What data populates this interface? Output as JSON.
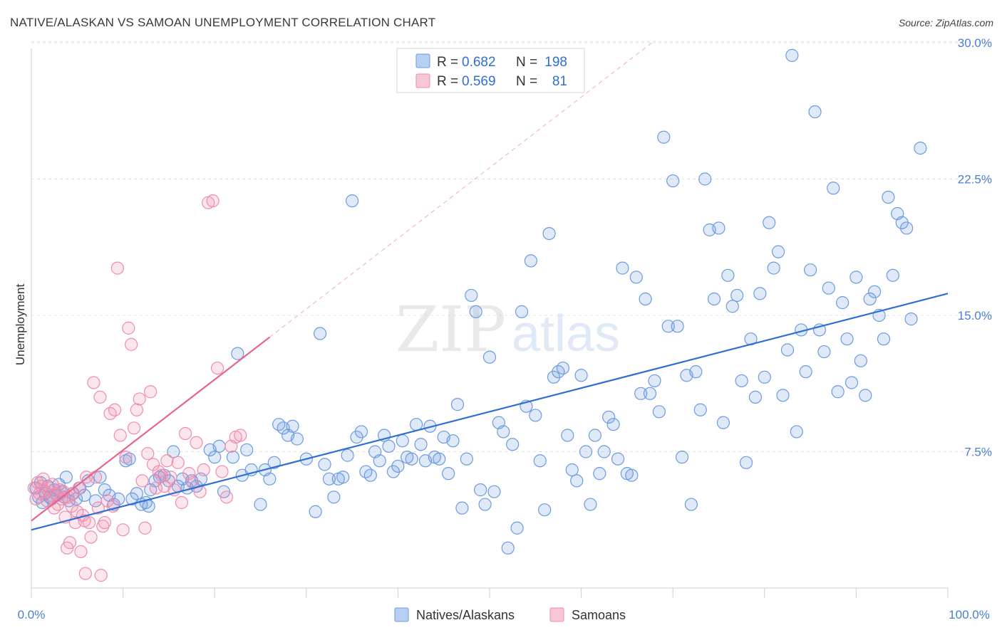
{
  "title": "NATIVE/ALASKAN VS SAMOAN UNEMPLOYMENT CORRELATION CHART",
  "source": "Source: ZipAtlas.com",
  "watermark": {
    "zip": "ZIP",
    "atlas": "atlas"
  },
  "colors": {
    "natives": "#6c9be0",
    "natives_line": "#2f6fd0",
    "samoans": "#f08cad",
    "samoans_line": "#e8648f",
    "tick_text": "#4a7fd0"
  },
  "chart_data": {
    "type": "scatter",
    "title": "NATIVE/ALASKAN VS SAMOAN UNEMPLOYMENT CORRELATION CHART",
    "xlabel": "",
    "ylabel": "Unemployment",
    "xlim": [
      0,
      100
    ],
    "ylim": [
      0,
      30
    ],
    "x_tick_labels": [
      "0.0%",
      "100.0%"
    ],
    "y_ticks": [
      7.5,
      15.0,
      22.5,
      30.0
    ],
    "y_tick_labels": [
      "7.5%",
      "15.0%",
      "22.5%",
      "30.0%"
    ],
    "grid": true,
    "legend": {
      "placement": "top-center",
      "entries": [
        {
          "r_label": "R = ",
          "r_value": "0.682",
          "n_label": "N = ",
          "n_value": "198"
        },
        {
          "r_label": "R = ",
          "r_value": "0.569",
          "n_label": "N = ",
          "n_value": "81"
        }
      ]
    },
    "series": [
      {
        "name": "Natives/Alaskans",
        "trend": {
          "x": [
            0,
            100
          ],
          "y": [
            3.2,
            16.2
          ]
        },
        "points": [
          [
            0.5,
            5.5
          ],
          [
            0.8,
            5.0
          ],
          [
            1.0,
            5.8
          ],
          [
            1.2,
            4.7
          ],
          [
            1.5,
            5.2
          ],
          [
            1.8,
            5.6
          ],
          [
            2.0,
            5.0
          ],
          [
            2.2,
            4.9
          ],
          [
            2.5,
            5.4
          ],
          [
            2.8,
            5.1
          ],
          [
            3.0,
            5.7
          ],
          [
            3.3,
            5.3
          ],
          [
            3.6,
            5.0
          ],
          [
            3.8,
            6.1
          ],
          [
            4.1,
            4.8
          ],
          [
            4.5,
            5.2
          ],
          [
            4.9,
            4.9
          ],
          [
            5.3,
            5.5
          ],
          [
            5.8,
            5.1
          ],
          [
            6.2,
            5.9
          ],
          [
            7.0,
            4.8
          ],
          [
            7.5,
            6.1
          ],
          [
            8.0,
            5.4
          ],
          [
            8.5,
            5.1
          ],
          [
            9.0,
            4.6
          ],
          [
            9.5,
            4.9
          ],
          [
            10.3,
            7.0
          ],
          [
            10.7,
            7.1
          ],
          [
            11.0,
            4.9
          ],
          [
            11.5,
            5.2
          ],
          [
            12.0,
            4.6
          ],
          [
            12.5,
            4.7
          ],
          [
            12.8,
            4.5
          ],
          [
            13.0,
            5.4
          ],
          [
            13.5,
            5.9
          ],
          [
            14.0,
            6.1
          ],
          [
            14.5,
            6.2
          ],
          [
            15.0,
            5.9
          ],
          [
            15.5,
            7.5
          ],
          [
            16.0,
            5.6
          ],
          [
            16.5,
            6.0
          ],
          [
            17.0,
            5.5
          ],
          [
            17.5,
            5.9
          ],
          [
            18.0,
            5.6
          ],
          [
            18.5,
            6.0
          ],
          [
            19.5,
            7.6
          ],
          [
            20.0,
            7.2
          ],
          [
            20.5,
            7.8
          ],
          [
            21.0,
            5.3
          ],
          [
            22.0,
            7.2
          ],
          [
            22.5,
            12.9
          ],
          [
            23.0,
            6.2
          ],
          [
            23.5,
            7.6
          ],
          [
            24.0,
            6.5
          ],
          [
            25.0,
            4.6
          ],
          [
            25.5,
            6.5
          ],
          [
            26.0,
            6.0
          ],
          [
            26.5,
            6.9
          ],
          [
            27.0,
            9.0
          ],
          [
            27.5,
            8.8
          ],
          [
            28.0,
            8.4
          ],
          [
            28.5,
            8.9
          ],
          [
            29.0,
            8.2
          ],
          [
            30.0,
            7.1
          ],
          [
            31.0,
            4.2
          ],
          [
            31.5,
            14.0
          ],
          [
            32.0,
            6.8
          ],
          [
            32.5,
            6.0
          ],
          [
            33.0,
            5.0
          ],
          [
            33.5,
            6.0
          ],
          [
            34.0,
            6.1
          ],
          [
            34.5,
            7.3
          ],
          [
            35.0,
            21.3
          ],
          [
            35.5,
            8.3
          ],
          [
            36.0,
            8.6
          ],
          [
            36.5,
            6.4
          ],
          [
            37.0,
            6.2
          ],
          [
            37.5,
            7.5
          ],
          [
            38.0,
            7.0
          ],
          [
            38.5,
            8.4
          ],
          [
            39.0,
            7.8
          ],
          [
            39.5,
            6.4
          ],
          [
            40.0,
            6.7
          ],
          [
            40.5,
            8.1
          ],
          [
            41.0,
            7.2
          ],
          [
            41.5,
            7.1
          ],
          [
            42.0,
            9.0
          ],
          [
            42.5,
            7.9
          ],
          [
            43.0,
            7.0
          ],
          [
            43.5,
            8.9
          ],
          [
            44.0,
            7.2
          ],
          [
            44.5,
            7.1
          ],
          [
            45.0,
            8.3
          ],
          [
            45.5,
            6.3
          ],
          [
            46.0,
            8.1
          ],
          [
            46.5,
            10.1
          ],
          [
            47.0,
            4.4
          ],
          [
            47.5,
            7.1
          ],
          [
            48.0,
            16.1
          ],
          [
            48.5,
            15.2
          ],
          [
            49.0,
            5.4
          ],
          [
            49.5,
            4.6
          ],
          [
            50.0,
            12.7
          ],
          [
            50.5,
            5.3
          ],
          [
            51.0,
            9.1
          ],
          [
            51.5,
            8.6
          ],
          [
            52.0,
            2.2
          ],
          [
            52.5,
            7.9
          ],
          [
            53.0,
            3.3
          ],
          [
            53.5,
            15.2
          ],
          [
            54.0,
            10.0
          ],
          [
            54.5,
            18.0
          ],
          [
            55.0,
            9.5
          ],
          [
            55.5,
            7.0
          ],
          [
            56.0,
            4.3
          ],
          [
            56.5,
            19.5
          ],
          [
            57.0,
            11.6
          ],
          [
            57.5,
            11.9
          ],
          [
            58.0,
            12.1
          ],
          [
            58.5,
            8.4
          ],
          [
            59.0,
            6.5
          ],
          [
            59.5,
            5.9
          ],
          [
            60.0,
            11.7
          ],
          [
            60.5,
            7.5
          ],
          [
            61.0,
            4.6
          ],
          [
            61.5,
            8.4
          ],
          [
            62.0,
            6.3
          ],
          [
            62.5,
            7.5
          ],
          [
            63.0,
            9.4
          ],
          [
            63.5,
            9.0
          ],
          [
            64.0,
            7.1
          ],
          [
            64.5,
            17.6
          ],
          [
            65.0,
            6.3
          ],
          [
            65.5,
            6.2
          ],
          [
            66.0,
            17.1
          ],
          [
            66.5,
            10.7
          ],
          [
            67.0,
            15.9
          ],
          [
            67.5,
            10.7
          ],
          [
            68.0,
            11.4
          ],
          [
            68.5,
            9.7
          ],
          [
            69.0,
            24.8
          ],
          [
            69.5,
            14.4
          ],
          [
            70.0,
            22.4
          ],
          [
            70.5,
            14.4
          ],
          [
            71.0,
            7.2
          ],
          [
            71.5,
            11.7
          ],
          [
            72.0,
            4.6
          ],
          [
            72.5,
            11.9
          ],
          [
            73.0,
            9.8
          ],
          [
            73.5,
            22.5
          ],
          [
            74.0,
            19.7
          ],
          [
            74.5,
            15.9
          ],
          [
            75.0,
            19.8
          ],
          [
            75.5,
            9.1
          ],
          [
            76.0,
            17.2
          ],
          [
            76.5,
            15.5
          ],
          [
            77.0,
            16.1
          ],
          [
            77.5,
            11.4
          ],
          [
            78.0,
            6.9
          ],
          [
            78.5,
            13.7
          ],
          [
            79.0,
            10.5
          ],
          [
            79.5,
            16.2
          ],
          [
            80.0,
            11.6
          ],
          [
            80.5,
            20.1
          ],
          [
            81.0,
            17.6
          ],
          [
            81.5,
            18.5
          ],
          [
            82.0,
            10.6
          ],
          [
            82.5,
            13.1
          ],
          [
            83.0,
            29.3
          ],
          [
            83.5,
            8.6
          ],
          [
            84.0,
            14.2
          ],
          [
            84.5,
            11.9
          ],
          [
            85.0,
            17.5
          ],
          [
            85.5,
            26.2
          ],
          [
            86.0,
            14.2
          ],
          [
            86.5,
            13.0
          ],
          [
            87.0,
            16.5
          ],
          [
            87.5,
            22.0
          ],
          [
            88.0,
            10.8
          ],
          [
            88.5,
            15.7
          ],
          [
            89.0,
            13.7
          ],
          [
            89.5,
            11.3
          ],
          [
            90.0,
            17.1
          ],
          [
            90.5,
            12.5
          ],
          [
            91.0,
            10.6
          ],
          [
            91.5,
            15.9
          ],
          [
            92.0,
            16.3
          ],
          [
            92.5,
            15.0
          ],
          [
            93.0,
            13.7
          ],
          [
            93.5,
            21.5
          ],
          [
            94.0,
            17.2
          ],
          [
            94.5,
            20.6
          ],
          [
            95.0,
            20.1
          ],
          [
            95.5,
            19.8
          ],
          [
            96.0,
            14.8
          ],
          [
            97.0,
            24.2
          ]
        ]
      },
      {
        "name": "Samoans",
        "trend": {
          "x": [
            0,
            26
          ],
          "y": [
            3.7,
            13.8
          ]
        },
        "points": [
          [
            0.3,
            5.5
          ],
          [
            0.5,
            4.9
          ],
          [
            0.7,
            5.8
          ],
          [
            0.9,
            5.2
          ],
          [
            1.1,
            5.6
          ],
          [
            1.3,
            6.0
          ],
          [
            1.5,
            5.3
          ],
          [
            1.7,
            4.8
          ],
          [
            1.9,
            5.5
          ],
          [
            2.1,
            5.1
          ],
          [
            2.3,
            5.7
          ],
          [
            2.5,
            4.4
          ],
          [
            2.7,
            5.2
          ],
          [
            2.9,
            4.6
          ],
          [
            3.1,
            5.4
          ],
          [
            3.3,
            4.9
          ],
          [
            3.5,
            5.3
          ],
          [
            3.7,
            3.9
          ],
          [
            4.0,
            5.0
          ],
          [
            4.2,
            2.5
          ],
          [
            4.4,
            4.5
          ],
          [
            4.6,
            5.2
          ],
          [
            4.8,
            3.6
          ],
          [
            5.0,
            4.2
          ],
          [
            5.2,
            5.5
          ],
          [
            5.4,
            2.0
          ],
          [
            5.6,
            4.0
          ],
          [
            5.8,
            3.7
          ],
          [
            6.0,
            6.1
          ],
          [
            6.3,
            3.6
          ],
          [
            6.5,
            2.8
          ],
          [
            6.8,
            11.3
          ],
          [
            7.0,
            6.1
          ],
          [
            7.3,
            4.4
          ],
          [
            7.5,
            10.5
          ],
          [
            7.8,
            3.4
          ],
          [
            8.0,
            3.6
          ],
          [
            8.3,
            4.8
          ],
          [
            8.6,
            9.6
          ],
          [
            8.9,
            4.5
          ],
          [
            9.1,
            9.8
          ],
          [
            9.4,
            17.6
          ],
          [
            9.7,
            8.4
          ],
          [
            10.0,
            3.2
          ],
          [
            10.3,
            7.2
          ],
          [
            10.6,
            14.3
          ],
          [
            10.9,
            13.4
          ],
          [
            11.2,
            8.8
          ],
          [
            11.5,
            9.8
          ],
          [
            11.8,
            10.4
          ],
          [
            12.1,
            5.9
          ],
          [
            12.4,
            3.3
          ],
          [
            12.7,
            7.4
          ],
          [
            13.0,
            10.8
          ],
          [
            13.3,
            6.8
          ],
          [
            13.6,
            5.5
          ],
          [
            13.9,
            6.4
          ],
          [
            14.2,
            6.2
          ],
          [
            14.5,
            5.6
          ],
          [
            14.8,
            7.0
          ],
          [
            15.2,
            6.1
          ],
          [
            15.6,
            5.4
          ],
          [
            16.0,
            6.9
          ],
          [
            16.4,
            4.7
          ],
          [
            16.8,
            8.5
          ],
          [
            17.2,
            6.3
          ],
          [
            17.6,
            5.8
          ],
          [
            18.0,
            8.0
          ],
          [
            18.4,
            5.3
          ],
          [
            18.8,
            6.5
          ],
          [
            19.3,
            21.2
          ],
          [
            19.8,
            21.3
          ],
          [
            20.3,
            12.1
          ],
          [
            20.8,
            6.4
          ],
          [
            21.3,
            5.0
          ],
          [
            21.8,
            7.8
          ],
          [
            22.3,
            8.3
          ],
          [
            22.8,
            8.4
          ],
          [
            5.9,
            0.8
          ],
          [
            7.6,
            0.7
          ],
          [
            3.9,
            2.2
          ]
        ]
      }
    ]
  },
  "bottom_legend": [
    {
      "label": "Natives/Alaskans"
    },
    {
      "label": "Samoans"
    }
  ]
}
